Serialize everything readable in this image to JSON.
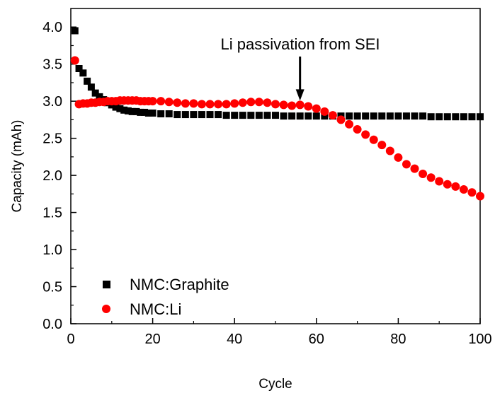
{
  "chart_data": {
    "type": "scatter",
    "title": "",
    "xlabel": "Cycle",
    "ylabel": "Capacity (mAh)",
    "xlim": [
      0,
      100
    ],
    "ylim": [
      0.0,
      4.25
    ],
    "xticks": [
      0,
      20,
      40,
      60,
      80,
      100
    ],
    "yticks": [
      "0.0",
      "0.5",
      "1.0",
      "1.5",
      "2.0",
      "2.5",
      "3.0",
      "3.5",
      "4.0"
    ],
    "grid": false,
    "legend_position": "bottom-left",
    "annotation": {
      "text": "Li passivation from SEI",
      "x": 56,
      "y": 2.95
    },
    "series": [
      {
        "name": "NMC:Graphite",
        "marker": "square",
        "color": "#000000",
        "x": [
          1,
          2,
          3,
          4,
          5,
          6,
          7,
          8,
          9,
          10,
          11,
          12,
          13,
          14,
          15,
          16,
          17,
          18,
          19,
          20,
          22,
          24,
          26,
          28,
          30,
          32,
          34,
          36,
          38,
          40,
          42,
          44,
          46,
          48,
          50,
          52,
          54,
          56,
          58,
          60,
          62,
          64,
          66,
          68,
          70,
          72,
          74,
          76,
          78,
          80,
          82,
          84,
          86,
          88,
          90,
          92,
          94,
          96,
          98,
          100
        ],
        "y": [
          3.95,
          3.44,
          3.38,
          3.27,
          3.19,
          3.11,
          3.06,
          3.02,
          2.98,
          2.95,
          2.92,
          2.9,
          2.88,
          2.87,
          2.86,
          2.86,
          2.85,
          2.85,
          2.84,
          2.84,
          2.83,
          2.83,
          2.82,
          2.82,
          2.82,
          2.82,
          2.82,
          2.82,
          2.81,
          2.81,
          2.81,
          2.81,
          2.81,
          2.81,
          2.81,
          2.8,
          2.8,
          2.8,
          2.8,
          2.8,
          2.8,
          2.8,
          2.8,
          2.8,
          2.8,
          2.8,
          2.8,
          2.8,
          2.8,
          2.8,
          2.8,
          2.8,
          2.8,
          2.79,
          2.79,
          2.79,
          2.79,
          2.79,
          2.79,
          2.79
        ]
      },
      {
        "name": "NMC:Li",
        "marker": "circle",
        "color": "#ff0000",
        "x": [
          1,
          2,
          3,
          4,
          5,
          6,
          7,
          8,
          9,
          10,
          11,
          12,
          13,
          14,
          15,
          16,
          17,
          18,
          19,
          20,
          22,
          24,
          26,
          28,
          30,
          32,
          34,
          36,
          38,
          40,
          42,
          44,
          46,
          48,
          50,
          52,
          54,
          56,
          58,
          60,
          62,
          64,
          66,
          68,
          70,
          72,
          74,
          76,
          78,
          80,
          82,
          84,
          86,
          88,
          90,
          92,
          94,
          96,
          98,
          100
        ],
        "y": [
          3.55,
          2.96,
          2.97,
          2.97,
          2.98,
          2.98,
          2.99,
          2.99,
          3.0,
          3.0,
          3.0,
          3.01,
          3.01,
          3.01,
          3.01,
          3.01,
          3.0,
          3.0,
          3.0,
          3.0,
          3.0,
          2.99,
          2.98,
          2.97,
          2.97,
          2.96,
          2.96,
          2.96,
          2.96,
          2.97,
          2.98,
          2.99,
          2.99,
          2.98,
          2.96,
          2.95,
          2.94,
          2.95,
          2.93,
          2.9,
          2.86,
          2.81,
          2.75,
          2.69,
          2.62,
          2.55,
          2.48,
          2.41,
          2.33,
          2.24,
          2.15,
          2.09,
          2.02,
          1.97,
          1.92,
          1.88,
          1.85,
          1.81,
          1.77,
          1.72
        ]
      }
    ]
  }
}
